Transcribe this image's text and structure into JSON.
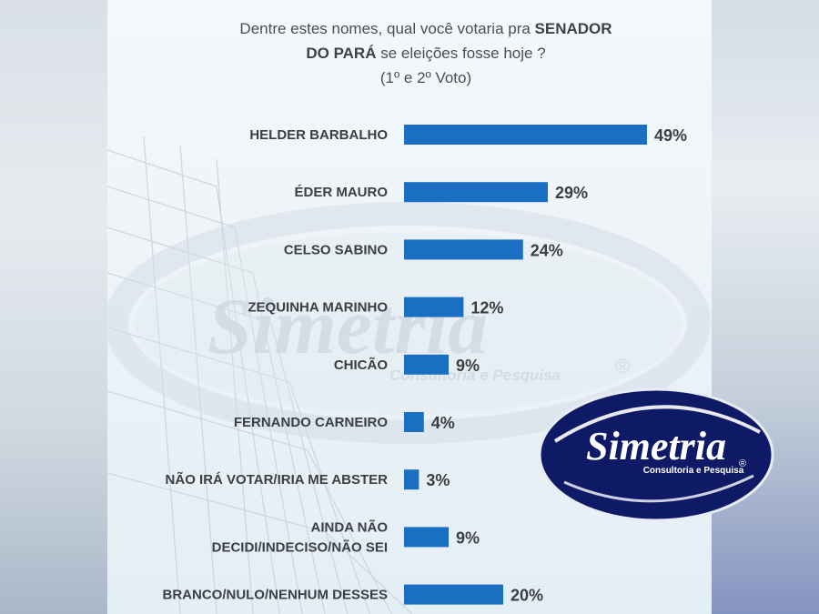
{
  "title": {
    "line1_normal": "Dentre estes nomes, qual você votaria pra ",
    "line1_bold": "SENADOR",
    "line2_bold": "DO PARÁ",
    "line2_normal": " se eleições fosse hoje ?",
    "line3": "(1º e 2º Voto)"
  },
  "watermark": {
    "brand": "Simetria",
    "tagline": "Consultoria e Pesquisa",
    "mark": "®"
  },
  "logo": {
    "brand": "Simetria",
    "tagline": "Consultoria e Pesquisa",
    "mark": "®"
  },
  "colors": {
    "bar": "#1a6fc3",
    "label": "#3b3f44",
    "value": "#3b3f44",
    "logo_navy": "#0f1a66"
  },
  "chart_data": {
    "type": "bar",
    "orientation": "horizontal",
    "categories": [
      "HELDER BARBALHO",
      "ÉDER MAURO",
      "CELSO SABINO",
      "ZEQUINHA MARINHO",
      "CHICÃO",
      "FERNANDO CARNEIRO",
      "NÃO IRÁ VOTAR/IRIA ME ABSTER",
      "AINDA NÃO\nDECIDI/INDECISO/NÃO SEI",
      "BRANCO/NULO/NENHUM DESSES"
    ],
    "values": [
      49,
      29,
      24,
      12,
      9,
      4,
      3,
      9,
      20
    ],
    "value_labels": [
      "49%",
      "29%",
      "24%",
      "12%",
      "9%",
      "4%",
      "3%",
      "9%",
      "20%"
    ],
    "unit": "%",
    "xlim": [
      0,
      49
    ],
    "grid": false,
    "legend": "none"
  }
}
